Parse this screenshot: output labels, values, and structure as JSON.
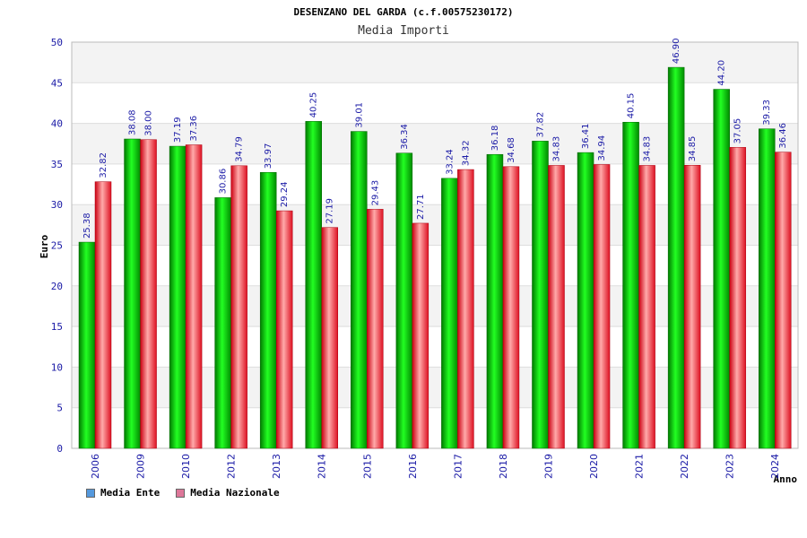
{
  "chart_data": {
    "type": "bar",
    "title": "DESENZANO DEL GARDA (c.f.00575230172)",
    "subtitle": "Media Importi",
    "xlabel": "Anno",
    "ylabel": "Euro",
    "ylim": [
      0,
      50
    ],
    "yticks": [
      0,
      5,
      10,
      15,
      20,
      25,
      30,
      35,
      40,
      45,
      50
    ],
    "categories": [
      "2006",
      "2009",
      "2010",
      "2012",
      "2013",
      "2014",
      "2015",
      "2016",
      "2017",
      "2018",
      "2019",
      "2020",
      "2021",
      "2022",
      "2023",
      "2024"
    ],
    "series": [
      {
        "name": "Media Ente",
        "color": "#00aa00",
        "values": [
          25.38,
          38.08,
          37.19,
          30.86,
          33.97,
          40.25,
          39.01,
          36.34,
          33.24,
          36.18,
          37.82,
          36.41,
          40.15,
          46.9,
          44.2,
          39.33
        ],
        "labels": [
          "25.38",
          "38.08",
          "37.19",
          "30.86",
          "33.97",
          "40.25",
          "39.01",
          "36.34",
          "33.24",
          "36.18",
          "37.82",
          "36.41",
          "40.15",
          "46.90",
          "44.20",
          "39.33"
        ]
      },
      {
        "name": "Media Nazionale",
        "color": "#ee2233",
        "values": [
          32.82,
          38.0,
          37.36,
          34.79,
          29.24,
          27.19,
          29.43,
          27.71,
          34.32,
          34.68,
          34.83,
          34.94,
          34.83,
          34.85,
          37.05,
          36.46
        ],
        "labels": [
          "32.82",
          "38.00",
          "37.36",
          "34.79",
          "29.24",
          "27.19",
          "29.43",
          "27.71",
          "34.32",
          "34.68",
          "34.83",
          "34.94",
          "34.83",
          "34.85",
          "37.05",
          "36.46"
        ]
      }
    ],
    "legend": [
      {
        "label": "Media Ente",
        "color": "#5599dd"
      },
      {
        "label": "Media Nazionale",
        "color": "#dd7799"
      }
    ],
    "grid": true,
    "legend_position": "bottom-left"
  }
}
